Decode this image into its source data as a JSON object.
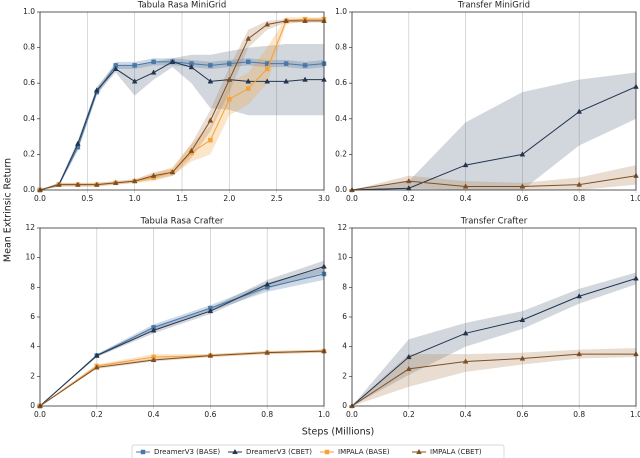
{
  "xlabel": "Steps (Millions)",
  "ylabel": "Mean Extrinsic Return",
  "legend": "bottom",
  "chart_data": [
    {
      "type": "line",
      "title": "Tabula Rasa MiniGrid",
      "grid": "x",
      "x": [
        0,
        0.2,
        0.4,
        0.6,
        0.8,
        1.0,
        1.2,
        1.4,
        1.6,
        1.8,
        2.0,
        2.2,
        2.4,
        2.6,
        2.8,
        3.0
      ],
      "xlim": [
        0,
        3
      ],
      "xticks": [
        {
          "value": 0,
          "label": "0.0"
        },
        0.5,
        {
          "value": 1,
          "label": "1.0"
        },
        1.5,
        {
          "value": 2,
          "label": "2.0"
        },
        2.5,
        {
          "value": 3,
          "label": "3.0"
        }
      ],
      "ylim": [
        0,
        1
      ],
      "yticks": [
        {
          "value": 0,
          "label": "0.0"
        },
        0.2,
        0.4,
        0.6,
        0.8,
        {
          "value": 1,
          "label": "1.0"
        }
      ],
      "series": [
        {
          "name": "DreamerV3 (BASE)",
          "color": "#4a78a8",
          "band_color": "#4a78a8",
          "marker": "square",
          "values": [
            0,
            0.03,
            0.24,
            0.55,
            0.7,
            0.7,
            0.72,
            0.72,
            0.71,
            0.7,
            0.71,
            0.72,
            0.71,
            0.71,
            0.7,
            0.71
          ],
          "lower": [
            0,
            0.02,
            0.22,
            0.53,
            0.68,
            0.68,
            0.7,
            0.7,
            0.69,
            0.68,
            0.69,
            0.7,
            0.69,
            0.69,
            0.68,
            0.69
          ],
          "upper": [
            0,
            0.04,
            0.26,
            0.57,
            0.72,
            0.72,
            0.74,
            0.74,
            0.73,
            0.72,
            0.73,
            0.74,
            0.73,
            0.73,
            0.72,
            0.73
          ]
        },
        {
          "name": "DreamerV3 (CBET)",
          "color": "#22344f",
          "band_color": "#5a6e82",
          "marker": "triangle",
          "values": [
            0,
            0.03,
            0.26,
            0.56,
            0.68,
            0.61,
            0.66,
            0.72,
            0.69,
            0.61,
            0.62,
            0.61,
            0.61,
            0.61,
            0.62,
            0.62
          ],
          "lower": [
            0,
            0.02,
            0.24,
            0.54,
            0.66,
            0.53,
            0.62,
            0.69,
            0.6,
            0.46,
            0.45,
            0.42,
            0.42,
            0.42,
            0.42,
            0.42
          ],
          "upper": [
            0,
            0.04,
            0.28,
            0.58,
            0.7,
            0.7,
            0.72,
            0.74,
            0.76,
            0.76,
            0.78,
            0.8,
            0.81,
            0.82,
            0.82,
            0.82
          ]
        },
        {
          "name": "IMPALA (BASE)",
          "color": "#f4a23a",
          "band_color": "#f4a23a",
          "marker": "square",
          "values": [
            0,
            0.03,
            0.03,
            0.03,
            0.04,
            0.05,
            0.07,
            0.1,
            0.21,
            0.28,
            0.51,
            0.57,
            0.68,
            0.95,
            0.96,
            0.96
          ],
          "lower": [
            0,
            0.02,
            0.02,
            0.02,
            0.03,
            0.04,
            0.05,
            0.08,
            0.16,
            0.2,
            0.42,
            0.48,
            0.6,
            0.93,
            0.95,
            0.95
          ],
          "upper": [
            0,
            0.04,
            0.04,
            0.04,
            0.05,
            0.06,
            0.09,
            0.13,
            0.26,
            0.36,
            0.6,
            0.66,
            0.8,
            0.97,
            0.97,
            0.97
          ]
        },
        {
          "name": "IMPALA (CBET)",
          "color": "#7f4f24",
          "band_color": "#b0805a",
          "marker": "triangle",
          "values": [
            0,
            0.03,
            0.03,
            0.03,
            0.04,
            0.05,
            0.08,
            0.1,
            0.22,
            0.39,
            0.62,
            0.85,
            0.93,
            0.95,
            0.95,
            0.95
          ],
          "lower": [
            0,
            0.02,
            0.02,
            0.02,
            0.03,
            0.04,
            0.06,
            0.08,
            0.18,
            0.33,
            0.55,
            0.8,
            0.9,
            0.94,
            0.94,
            0.94
          ],
          "upper": [
            0,
            0.04,
            0.04,
            0.04,
            0.05,
            0.06,
            0.1,
            0.12,
            0.26,
            0.45,
            0.69,
            0.9,
            0.95,
            0.96,
            0.96,
            0.96
          ]
        }
      ]
    },
    {
      "type": "line",
      "title": "Transfer MiniGrid",
      "grid": "x",
      "x": [
        0,
        0.2,
        0.4,
        0.6,
        0.8,
        1.0
      ],
      "xlim": [
        0,
        1
      ],
      "xticks": [
        {
          "value": 0,
          "label": "0.0"
        },
        0.2,
        0.4,
        0.6,
        0.8,
        {
          "value": 1,
          "label": "1.0"
        }
      ],
      "ylim": [
        0,
        1
      ],
      "yticks": [
        {
          "value": 0,
          "label": "0.0"
        },
        0.2,
        0.4,
        0.6,
        0.8,
        {
          "value": 1,
          "label": "1.0"
        }
      ],
      "series": [
        {
          "name": "DreamerV3 (CBET)",
          "color": "#22344f",
          "band_color": "#5a6e82",
          "marker": "triangle",
          "values": [
            0,
            0.01,
            0.14,
            0.2,
            0.44,
            0.58
          ],
          "lower": [
            0,
            0,
            0,
            0,
            0.25,
            0.4
          ],
          "upper": [
            0,
            0.05,
            0.38,
            0.55,
            0.62,
            0.66
          ]
        },
        {
          "name": "IMPALA (CBET)",
          "color": "#7f4f24",
          "band_color": "#b0805a",
          "marker": "triangle",
          "values": [
            0,
            0.05,
            0.02,
            0.02,
            0.03,
            0.08
          ],
          "lower": [
            0,
            0.01,
            0,
            0,
            0,
            0.03
          ],
          "upper": [
            0,
            0.08,
            0.05,
            0.04,
            0.07,
            0.14
          ]
        }
      ]
    },
    {
      "type": "line",
      "title": "Tabula Rasa Crafter",
      "grid": "x",
      "x": [
        0,
        0.2,
        0.4,
        0.6,
        0.8,
        1.0
      ],
      "xlim": [
        0,
        1
      ],
      "xticks": [
        {
          "value": 0,
          "label": "0.0"
        },
        0.2,
        0.4,
        0.6,
        0.8,
        {
          "value": 1,
          "label": "1.0"
        }
      ],
      "ylim": [
        0,
        12
      ],
      "yticks": [
        0,
        2,
        4,
        6,
        8,
        10,
        12
      ],
      "series": [
        {
          "name": "DreamerV3 (BASE)",
          "color": "#4a78a8",
          "band_color": "#4a78a8",
          "marker": "square",
          "values": [
            0,
            3.4,
            5.3,
            6.6,
            8.0,
            8.9
          ],
          "lower": [
            0,
            3.3,
            5.1,
            6.4,
            7.7,
            8.5
          ],
          "upper": [
            0,
            3.5,
            5.5,
            6.8,
            8.3,
            9.3
          ]
        },
        {
          "name": "DreamerV3 (CBET)",
          "color": "#22344f",
          "band_color": "#5a6e82",
          "marker": "triangle",
          "values": [
            0,
            3.4,
            5.1,
            6.4,
            8.2,
            9.4
          ],
          "lower": [
            0,
            3.3,
            4.9,
            6.2,
            7.9,
            9.0
          ],
          "upper": [
            0,
            3.5,
            5.3,
            6.6,
            8.5,
            9.8
          ]
        },
        {
          "name": "IMPALA (BASE)",
          "color": "#f4a23a",
          "band_color": "#f4a23a",
          "marker": "square",
          "values": [
            0,
            2.7,
            3.3,
            3.4,
            3.6,
            3.7
          ],
          "lower": [
            0,
            2.6,
            3.1,
            3.3,
            3.5,
            3.6
          ],
          "upper": [
            0,
            2.8,
            3.5,
            3.5,
            3.7,
            3.8
          ]
        },
        {
          "name": "IMPALA (CBET)",
          "color": "#7f4f24",
          "band_color": "#b0805a",
          "marker": "triangle",
          "values": [
            0,
            2.6,
            3.1,
            3.4,
            3.6,
            3.7
          ],
          "lower": [
            0,
            2.5,
            3.0,
            3.3,
            3.5,
            3.6
          ],
          "upper": [
            0,
            2.7,
            3.2,
            3.5,
            3.7,
            3.8
          ]
        }
      ]
    },
    {
      "type": "line",
      "title": "Transfer Crafter",
      "grid": "x",
      "x": [
        0,
        0.2,
        0.4,
        0.6,
        0.8,
        1.0
      ],
      "xlim": [
        0,
        1
      ],
      "xticks": [
        {
          "value": 0,
          "label": "0.0"
        },
        0.2,
        0.4,
        0.6,
        0.8,
        {
          "value": 1,
          "label": "1.0"
        }
      ],
      "ylim": [
        0,
        12
      ],
      "yticks": [
        0,
        2,
        4,
        6,
        8,
        10,
        12
      ],
      "series": [
        {
          "name": "DreamerV3 (CBET)",
          "color": "#22344f",
          "band_color": "#5a6e82",
          "marker": "triangle",
          "values": [
            0,
            3.3,
            4.9,
            5.8,
            7.4,
            8.6
          ],
          "lower": [
            0,
            2.1,
            4.0,
            5.2,
            6.9,
            8.2
          ],
          "upper": [
            0,
            4.5,
            5.6,
            6.4,
            7.9,
            9.0
          ]
        },
        {
          "name": "IMPALA (CBET)",
          "color": "#7f4f24",
          "band_color": "#b0805a",
          "marker": "triangle",
          "values": [
            0,
            2.5,
            3.0,
            3.2,
            3.5,
            3.5
          ],
          "lower": [
            0,
            1.3,
            2.3,
            2.8,
            3.2,
            3.3
          ],
          "upper": [
            0,
            3.5,
            3.5,
            3.6,
            3.8,
            3.9
          ]
        }
      ]
    }
  ]
}
